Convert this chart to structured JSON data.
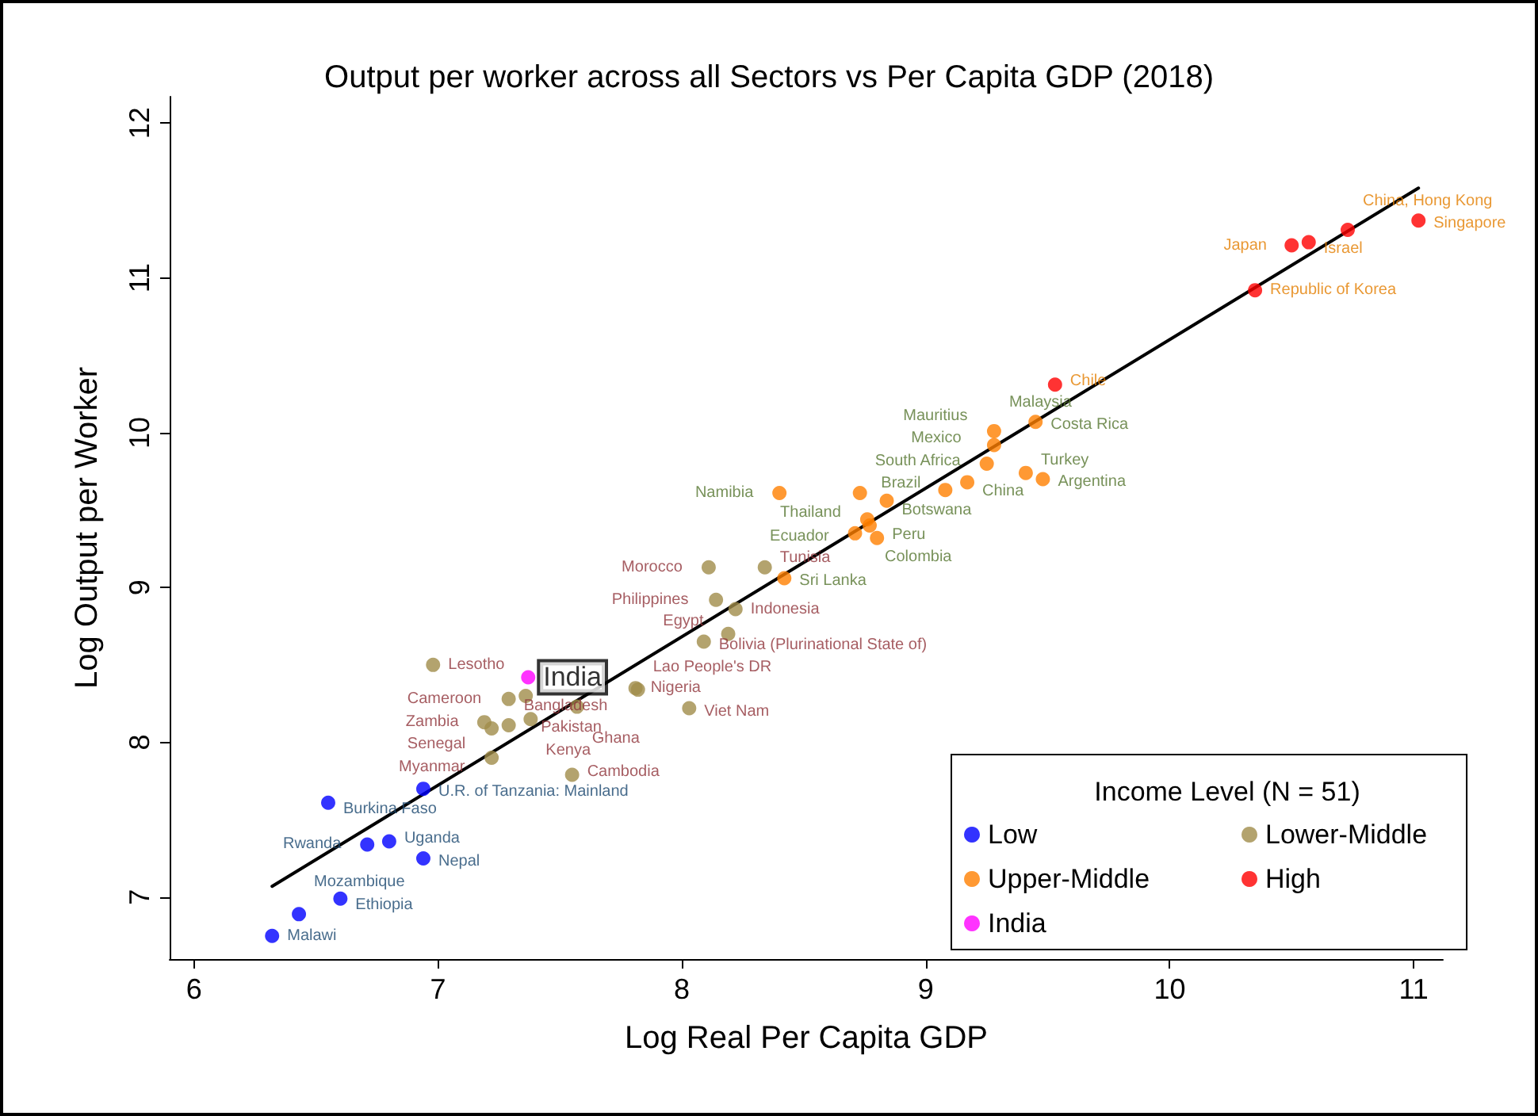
{
  "chart_data": {
    "type": "scatter",
    "title": "Output per worker across all Sectors vs Per Capita GDP (2018)",
    "xlabel": "Log Real Per Capita GDP",
    "ylabel": "Log Output per Worker",
    "legend_title": "Income Level (N = 51)",
    "legend": "bottom right",
    "marker": "circle",
    "grid": false,
    "xlim": [
      5.9,
      11.12
    ],
    "xticks": [
      6,
      7,
      8,
      9,
      10,
      11
    ],
    "ylim": [
      6.6,
      12.17
    ],
    "yticks": [
      7,
      8,
      9,
      10,
      11,
      12
    ],
    "series": [
      {
        "name": "Low",
        "color": "#0000ff",
        "x": [
          6.32,
          6.43,
          6.6,
          6.71,
          6.8,
          6.94,
          6.55,
          6.94
        ],
        "values": [
          6.75,
          6.89,
          6.99,
          7.34,
          7.36,
          7.25,
          7.61,
          7.7
        ],
        "value_labels": [
          "Malawi",
          "Mozambique",
          "Ethiopia",
          "Rwanda",
          "Uganda",
          "Nepal",
          "Burkina Faso",
          "U.R. of Tanzania: Mainland"
        ]
      },
      {
        "name": "Lower-Middle",
        "color": "#a08c4a",
        "x": [
          6.98,
          7.29,
          7.36,
          7.19,
          7.22,
          7.38,
          7.29,
          7.22,
          7.55,
          7.57,
          7.81,
          7.82,
          8.03,
          8.09,
          8.19,
          8.14,
          8.22,
          8.11,
          8.34
        ],
        "values": [
          8.5,
          8.28,
          8.3,
          8.13,
          8.09,
          8.15,
          8.11,
          7.9,
          7.79,
          8.23,
          8.35,
          8.34,
          8.22,
          8.65,
          8.7,
          8.92,
          8.86,
          9.13,
          9.13
        ],
        "value_labels": [
          "Lesotho",
          "Cameroon",
          "Pakistan",
          "Zambia",
          "Senegal",
          "Kenya",
          "Bangladesh",
          "Myanmar",
          "Cambodia",
          "Ghana",
          "Nigeria",
          "Lao People's DR",
          "Viet Nam",
          "Bolivia (Plurinational State of)",
          "Egypt",
          "Philippines",
          "Indonesia",
          "Morocco",
          "Tunisia"
        ]
      },
      {
        "name": "Upper-Middle",
        "color": "#ff8000",
        "x": [
          8.42,
          8.4,
          8.73,
          8.84,
          8.76,
          8.77,
          8.71,
          8.8,
          9.08,
          9.17,
          9.25,
          9.41,
          9.48,
          9.28,
          9.28,
          9.45
        ],
        "values": [
          9.06,
          9.61,
          9.61,
          9.56,
          9.44,
          9.4,
          9.35,
          9.32,
          9.63,
          9.68,
          9.8,
          9.74,
          9.7,
          9.92,
          10.01,
          10.07
        ],
        "value_labels": [
          "Sri Lanka",
          "Namibia",
          "South Africa",
          "Botswana",
          "Thailand",
          "Colombia",
          "Ecuador",
          "Peru",
          "Brazil",
          "China",
          "Mexico",
          "Turkey",
          "Argentina",
          "Mauritius",
          "Malaysia",
          "Costa Rica"
        ]
      },
      {
        "name": "High",
        "color": "#ff0000",
        "x": [
          9.53,
          10.35,
          10.5,
          10.57,
          10.73,
          11.02
        ],
        "values": [
          10.31,
          10.92,
          11.21,
          11.23,
          11.31,
          11.37
        ],
        "value_labels": [
          "Chile",
          "Republic of Korea",
          "Japan",
          "Israel",
          "China, Hong Kong",
          "Singapore"
        ]
      },
      {
        "name": "India",
        "color": "#ff00ff",
        "x": [
          7.37
        ],
        "values": [
          8.42
        ],
        "value_labels": [
          "India"
        ]
      },
      {
        "type": "line",
        "color": "#000000",
        "marker": "none",
        "x": [
          6.32,
          11.02
        ],
        "values": [
          7.07,
          11.58
        ]
      }
    ]
  }
}
